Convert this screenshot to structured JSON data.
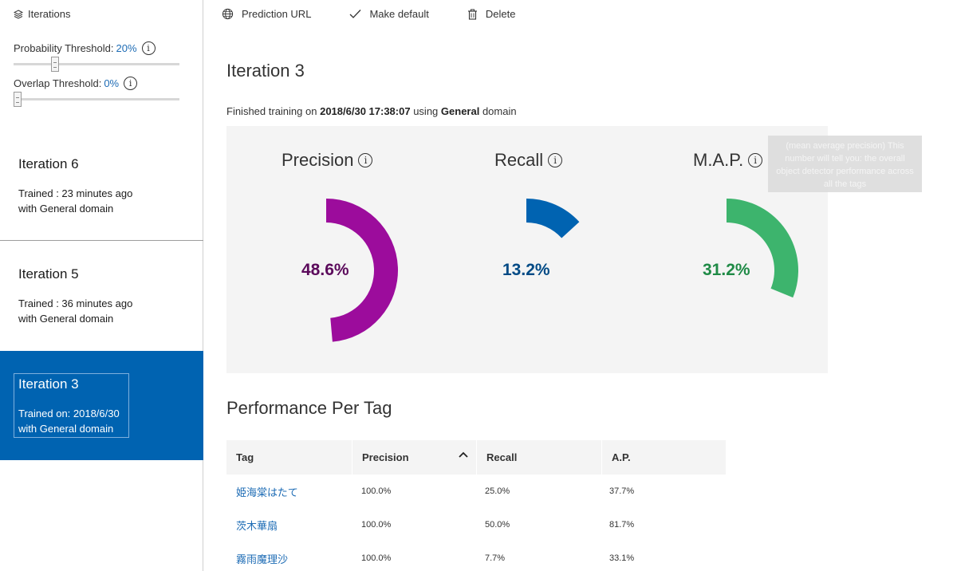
{
  "sidebar": {
    "header": "Iterations",
    "probability": {
      "label": "Probability Threshold:",
      "value": "20%",
      "level": 0.2
    },
    "overlap": {
      "label": "Overlap Threshold:",
      "value": "0%",
      "level": 0.0
    },
    "iterations": [
      {
        "title": "Iteration 6",
        "line1": "Trained : 23 minutes ago",
        "line2": "with General domain",
        "selected": false
      },
      {
        "title": "Iteration 5",
        "line1": "Trained : 36 minutes ago",
        "line2": "with General domain",
        "selected": false
      },
      {
        "title": "Iteration 3",
        "line1": "Trained on: 2018/6/30",
        "line2": "with General domain",
        "selected": true
      }
    ]
  },
  "toolbar": {
    "prediction_url": "Prediction URL",
    "make_default": "Make default",
    "delete": "Delete"
  },
  "main": {
    "title": "Iteration 3",
    "finished": {
      "prefix": "Finished training on",
      "datetime": "2018/6/30 17:38:07",
      "middle": "using",
      "domain": "General",
      "suffix": "domain"
    },
    "metrics": [
      {
        "label": "Precision",
        "value": "48.6%",
        "fraction": 0.486,
        "color": "#9c0c9c",
        "text_color": "#5b0a5b"
      },
      {
        "label": "Recall",
        "value": "13.2%",
        "fraction": 0.132,
        "color": "#0063b1",
        "text_color": "#004a85"
      },
      {
        "label": "M.A.P.",
        "value": "31.2%",
        "fraction": 0.312,
        "color": "#3db46d",
        "text_color": "#1f8a46"
      }
    ],
    "tooltip": "(mean average precision) This number will tell you: the overall object detector performance across all the tags",
    "perf_title": "Performance Per Tag",
    "table": {
      "headers": [
        "Tag",
        "Precision",
        "Recall",
        "A.P."
      ],
      "rows": [
        [
          "姫海棠はたて",
          "100.0%",
          "25.0%",
          "37.7%"
        ],
        [
          "茨木華扇",
          "100.0%",
          "50.0%",
          "81.7%"
        ],
        [
          "霧雨魔理沙",
          "100.0%",
          "7.7%",
          "33.1%"
        ]
      ]
    }
  }
}
